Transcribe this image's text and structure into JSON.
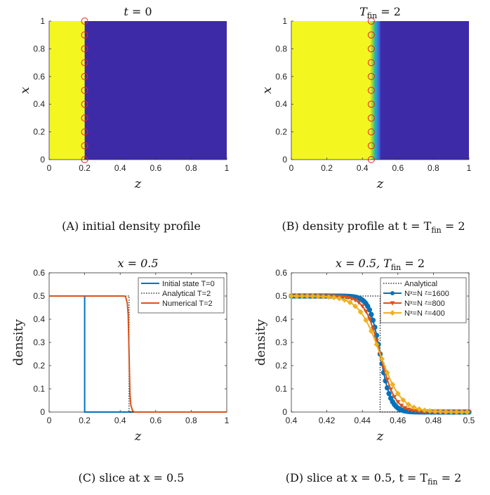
{
  "chart_data": [
    {
      "type": "heatmap",
      "title_var": "t",
      "title_val": "= 0",
      "xlabel": "z",
      "ylabel": "x",
      "xlim": [
        0,
        1
      ],
      "ylim": [
        0,
        1
      ],
      "xticks": [
        "0",
        "0.2",
        "0.4",
        "0.6",
        "0.8",
        "1"
      ],
      "yticks": [
        "0",
        "0.2",
        "0.4",
        "0.6",
        "0.8",
        "1"
      ],
      "interface_z": 0.2,
      "marker_z": 0.2,
      "markers_x": [
        0,
        0.1,
        0.2,
        0.3,
        0.4,
        0.5,
        0.6,
        0.7,
        0.8,
        0.9,
        1.0
      ],
      "low_color": "#3d2aa6",
      "high_color": "#f4f620",
      "caption_tag": "(A)",
      "caption": "initial density profile"
    },
    {
      "type": "heatmap",
      "title_var": "T",
      "title_sub": "fin",
      "title_val": "= 2",
      "xlabel": "z",
      "ylabel": "x",
      "xlim": [
        0,
        1
      ],
      "ylim": [
        0,
        1
      ],
      "xticks": [
        "0",
        "0.2",
        "0.4",
        "0.6",
        "0.8",
        "1"
      ],
      "yticks": [
        "0",
        "0.2",
        "0.4",
        "0.6",
        "0.8",
        "1"
      ],
      "interface_z": 0.45,
      "marker_z": 0.45,
      "markers_x": [
        0,
        0.1,
        0.2,
        0.3,
        0.4,
        0.5,
        0.6,
        0.7,
        0.8,
        0.9,
        1.0
      ],
      "low_color": "#3d2aa6",
      "high_color": "#f4f620",
      "caption_tag": "(B)",
      "caption": "density profile at t = T",
      "caption_sub": "fin",
      "caption_end": " = 2"
    },
    {
      "type": "line",
      "title": "x = 0.5",
      "xlabel": "z",
      "ylabel": "density",
      "xlim": [
        0,
        1
      ],
      "ylim": [
        0,
        0.6
      ],
      "xticks": [
        "0",
        "0.2",
        "0.4",
        "0.6",
        "0.8",
        "1"
      ],
      "yticks": [
        "0",
        "0.1",
        "0.2",
        "0.3",
        "0.4",
        "0.5",
        "0.6"
      ],
      "series": [
        {
          "name": "Initial state T=0",
          "color": "#0072bd",
          "style": "solid",
          "x": [
            0,
            0.2,
            0.2,
            1
          ],
          "y": [
            0.5,
            0.5,
            0,
            0
          ]
        },
        {
          "name": "Analytical T=2",
          "color": "#111111",
          "style": "dotted",
          "x": [
            0,
            0.45,
            0.45,
            1
          ],
          "y": [
            0.5,
            0.5,
            0,
            0
          ]
        },
        {
          "name": "Numerical T=2",
          "color": "#d95319",
          "style": "solid",
          "x": [
            0,
            0.42,
            0.43,
            0.44,
            0.445,
            0.45,
            0.455,
            0.46,
            0.47,
            0.48,
            1
          ],
          "y": [
            0.5,
            0.5,
            0.498,
            0.47,
            0.42,
            0.25,
            0.08,
            0.03,
            0.005,
            0,
            0
          ]
        }
      ],
      "legend_position": "top-right",
      "caption_tag": "(C)",
      "caption": "slice at x = 0.5"
    },
    {
      "type": "line",
      "title_main": "x = 0.5, T",
      "title_sub": "fin",
      "title_val": "= 2",
      "xlabel": "z",
      "ylabel": "density",
      "xlim": [
        0.4,
        0.5
      ],
      "ylim": [
        0,
        0.6
      ],
      "xticks": [
        "0.4",
        "0.42",
        "0.44",
        "0.46",
        "0.48",
        "0.5"
      ],
      "yticks": [
        "0",
        "0.1",
        "0.2",
        "0.3",
        "0.4",
        "0.5",
        "0.6"
      ],
      "series": [
        {
          "name": "Analytical",
          "color": "#111111",
          "style": "dotted",
          "marker": "none",
          "x": [
            0.4,
            0.45,
            0.45,
            0.5
          ],
          "y": [
            0.5,
            0.5,
            0,
            0
          ]
        },
        {
          "name": "Nˣ=N ᶻ=1600",
          "color": "#0072bd",
          "style": "solid",
          "marker": "circle",
          "width_param": 0.006
        },
        {
          "name": "Nˣ=N ᶻ=800",
          "color": "#d95319",
          "style": "solid",
          "marker": "triangle",
          "width_param": 0.0085
        },
        {
          "name": "Nˣ=N ᶻ=400",
          "color": "#edb120",
          "style": "solid",
          "marker": "diamond",
          "width_param": 0.012
        }
      ],
      "legend_position": "top-right",
      "caption_tag": "(D)",
      "caption": "slice at x = 0.5, t = T",
      "caption_sub": "fin",
      "caption_end": " = 2"
    }
  ]
}
